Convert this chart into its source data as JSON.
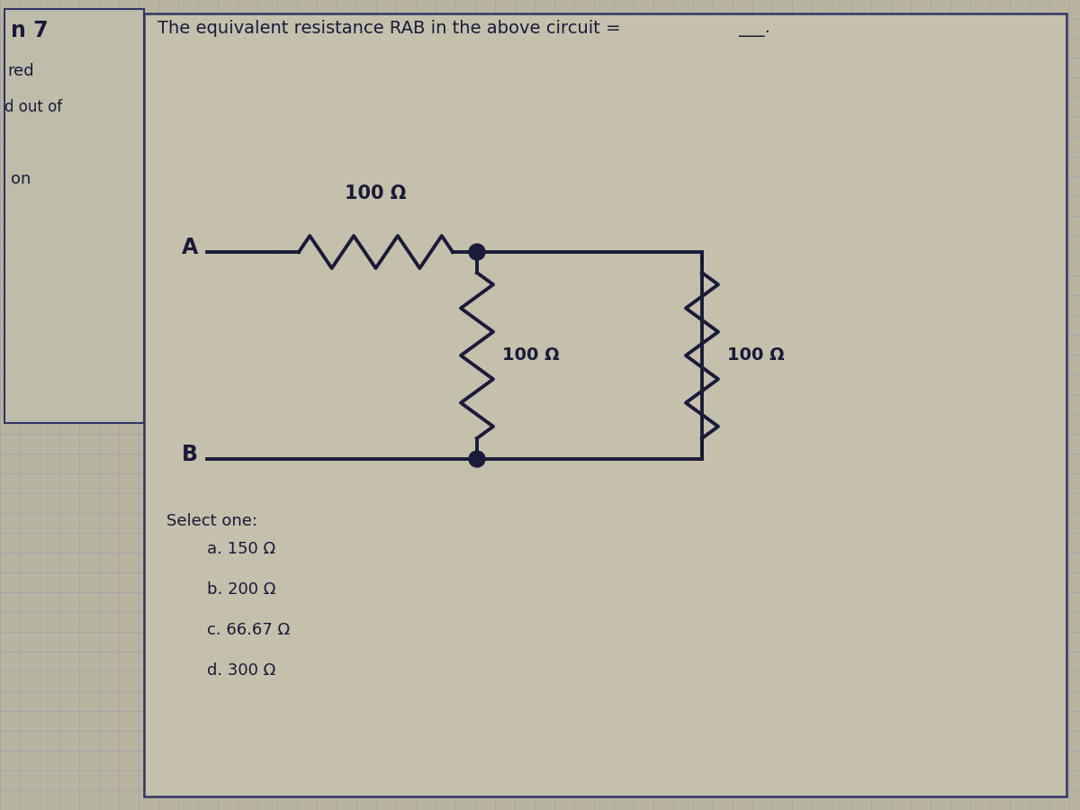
{
  "bg_color": "#b8b4a0",
  "left_box_bg": "#c0bcaa",
  "main_box_bg": "#c4c0ac",
  "grid_color_h": "#8888bb",
  "grid_color_v": "#8888bb",
  "title_text": "The equivalent resistance RAB in the above circuit =",
  "title_underline": "___.",
  "title_fontsize": 14,
  "circuit_color": "#1a1a3a",
  "text_color": "#1a1a3a",
  "resistor1_label": "100 Ω",
  "resistor2_label": "100 Ω",
  "resistor3_label": "100 Ω",
  "node_A_label": "A",
  "node_B_label": "B",
  "select_text": "Select one:",
  "options": [
    "a. 150 Ω",
    "b. 200 Ω",
    "c. 66.67 Ω",
    "d. 300 Ω"
  ],
  "left_bar_text_1": "n 7",
  "left_bar_text_2": "red",
  "left_bar_text_3": "d out of",
  "left_bar_text_4": "on",
  "box_edge_color": "#333366"
}
